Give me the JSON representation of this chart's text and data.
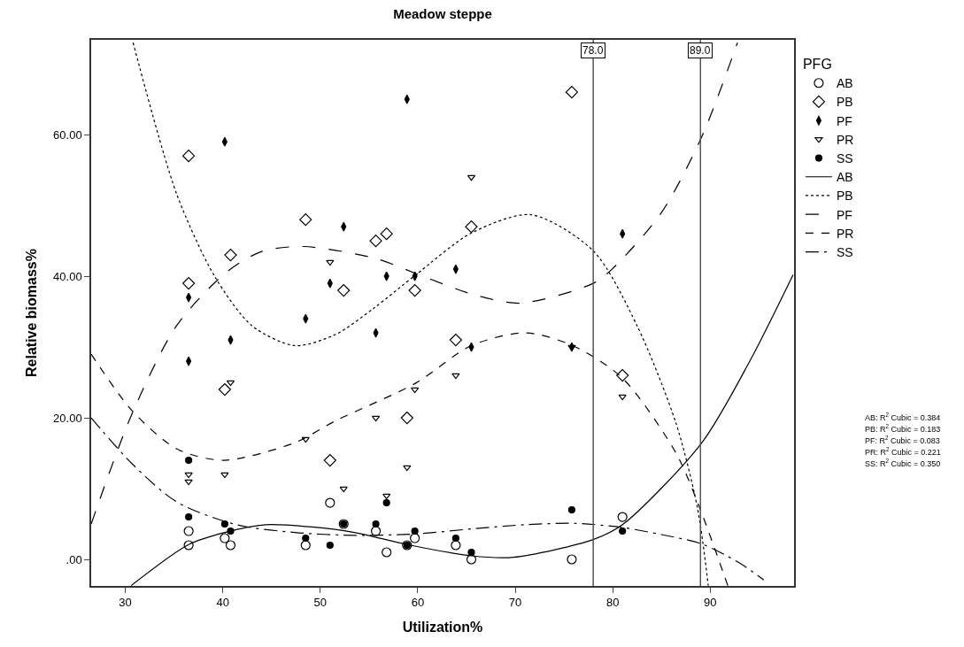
{
  "chart_data": {
    "type": "scatter",
    "title": "Meadow steppe",
    "xlabel": "Utilization%",
    "ylabel": "Relative biomass%",
    "legend_title": "PFG",
    "xlim": [
      26.5,
      98.6
    ],
    "ylim": [
      -3.75,
      73.4
    ],
    "xticks": [
      30,
      40,
      50,
      60,
      70,
      80,
      90
    ],
    "yticks": [
      {
        "value": 0,
        "label": ".00"
      },
      {
        "value": 20,
        "label": "20.00"
      },
      {
        "value": 40,
        "label": "40.00"
      },
      {
        "value": 60,
        "label": "60.00"
      }
    ],
    "legend": "top right",
    "series": [
      {
        "name": "AB",
        "marker": "circle",
        "color": "#000000",
        "x": [
          36.5,
          36.5,
          40.2,
          40.8,
          48.5,
          51,
          52.4,
          55.7,
          56.8,
          58.9,
          59.7,
          63.9,
          65.5,
          75.8,
          81
        ],
        "values": [
          4,
          2,
          3,
          2,
          2,
          8,
          5,
          4,
          1,
          2,
          3,
          2,
          0,
          0,
          6
        ]
      },
      {
        "name": "PB",
        "marker": "diamond",
        "color": "#000000",
        "x": [
          36.5,
          36.5,
          40.2,
          40.8,
          48.5,
          51,
          52.4,
          55.7,
          56.8,
          58.9,
          59.7,
          63.9,
          65.5,
          75.8,
          81
        ],
        "values": [
          57,
          39,
          24,
          43,
          48,
          14,
          38,
          45,
          46,
          20,
          38,
          31,
          47,
          66,
          26
        ]
      },
      {
        "name": "PF",
        "marker": "diamond",
        "color": "#000000",
        "x": [
          36.5,
          36.5,
          40.2,
          40.8,
          48.5,
          51,
          52.4,
          55.7,
          56.8,
          58.9,
          59.7,
          63.9,
          65.5,
          75.8,
          81
        ],
        "values": [
          37,
          28,
          59,
          31,
          34,
          39,
          47,
          32,
          40,
          65,
          40,
          41,
          30,
          30,
          46
        ]
      },
      {
        "name": "PR",
        "marker": "triangle",
        "color": "#000000",
        "x": [
          36.5,
          36.5,
          40.2,
          40.8,
          48.5,
          51,
          52.4,
          55.7,
          56.8,
          58.9,
          59.7,
          63.9,
          65.5,
          75.8,
          81
        ],
        "values": [
          12,
          11,
          12,
          25,
          17,
          42,
          10,
          20,
          9,
          13,
          24,
          26,
          54,
          30,
          23
        ]
      },
      {
        "name": "SS",
        "marker": "circle",
        "color": "#000000",
        "x": [
          36.5,
          36.5,
          40.2,
          40.8,
          48.5,
          51,
          52.4,
          55.7,
          56.8,
          58.9,
          59.7,
          63.9,
          65.5,
          75.8,
          81
        ],
        "values": [
          14,
          6,
          5,
          4,
          3,
          2,
          5,
          5,
          8,
          2,
          4,
          3,
          1,
          7,
          4
        ]
      },
      {
        "name": "AB",
        "type": "line",
        "line_style": "solid",
        "color": "#000000",
        "x": [
          30.6,
          36.5,
          40.2,
          44.4,
          48.9,
          53.5,
          58.9,
          65.5,
          69.8,
          78,
          81,
          89.1,
          94.1,
          98.5
        ],
        "values": [
          -3.7,
          2.1,
          3.8,
          4.9,
          4.6,
          3.8,
          2.1,
          0.5,
          0.3,
          2.8,
          4.9,
          16.4,
          28.1,
          40.2
        ]
      },
      {
        "name": "PB",
        "type": "line",
        "line_style": "dotted",
        "color": "#000000",
        "x": [
          30.8,
          35.3,
          39.2,
          43,
          47.4,
          51.6,
          55.5,
          59.8,
          65.5,
          71.6,
          78,
          82.5,
          86.5,
          88.7,
          89.8
        ],
        "values": [
          73,
          51.5,
          39.9,
          33,
          30.2,
          31.8,
          35.5,
          40.2,
          46.1,
          48.7,
          43.6,
          33,
          19.2,
          7.2,
          -3.7
        ]
      },
      {
        "name": "PF",
        "type": "line",
        "line_style": "longdash",
        "color": "#000000",
        "x": [
          26.5,
          30.7,
          35.3,
          40.4,
          44,
          48.3,
          55.7,
          60.7,
          65.5,
          70.5,
          78,
          80,
          85,
          89.1,
          92.8
        ],
        "values": [
          5,
          20.6,
          33.1,
          40.6,
          43.5,
          44.2,
          42.5,
          39.9,
          37.5,
          36.2,
          39,
          41.1,
          49,
          59.6,
          73
        ]
      },
      {
        "name": "PR",
        "type": "line",
        "line_style": "dashed",
        "color": "#000000",
        "x": [
          26.5,
          30.7,
          35.3,
          40.1,
          47.4,
          51.6,
          59.8,
          65.5,
          71,
          75.9,
          81,
          86.5,
          89,
          91.8
        ],
        "values": [
          29,
          21,
          15.6,
          14,
          16.5,
          19.6,
          24.9,
          30.2,
          32,
          30.2,
          25.6,
          15,
          7,
          -3.7
        ]
      },
      {
        "name": "SS",
        "type": "line",
        "line_style": "dashdot",
        "color": "#000000",
        "x": [
          26.5,
          30.7,
          35.3,
          41.4,
          47.4,
          53.5,
          59.8,
          65.5,
          71,
          76,
          81,
          85,
          89.1,
          93,
          95.5
        ],
        "values": [
          20,
          13.5,
          8.1,
          4.9,
          3.8,
          3.4,
          3.6,
          4.3,
          4.9,
          5.1,
          4.5,
          3.5,
          2.2,
          -0.5,
          -2.9
        ]
      }
    ],
    "ref_lines": [
      {
        "axis": "x",
        "value": 78,
        "label": "78.0",
        "color": "#555555"
      },
      {
        "axis": "x",
        "value": 89,
        "label": "89.0",
        "color": "#555555"
      }
    ],
    "annotations": [
      "AB: R$^{2}$ Cubic = 0.384",
      "PB: R$^{2}$ Cubic = 0.183",
      "PF: R$^{2}$ Cubic = 0.083",
      "PR: R$^{2}$ Cubic = 0.221",
      "SS: R$^{2}$ Cubic = 0.350"
    ]
  }
}
